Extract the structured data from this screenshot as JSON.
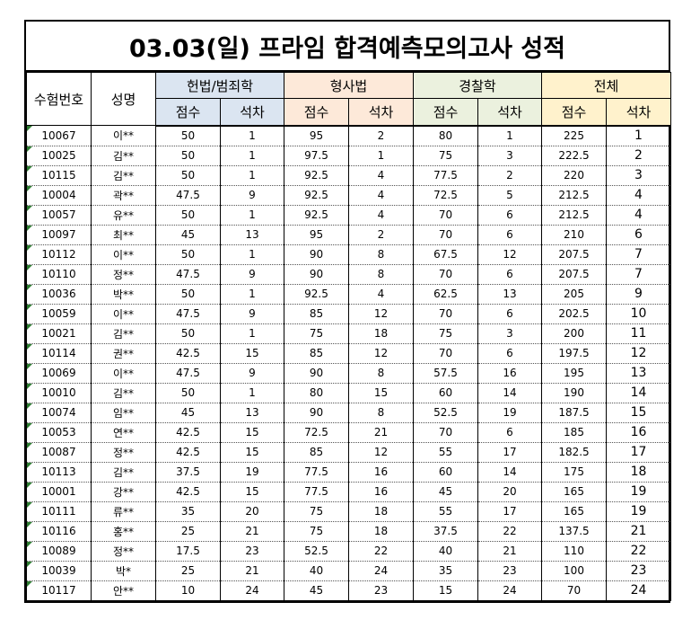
{
  "title": "03.03(일) 프라임 합격예측모의고사 성적",
  "headers": {
    "id": "수험번호",
    "name": "성명",
    "groups": [
      "헌법/범죄학",
      "형사법",
      "경찰학",
      "전체"
    ],
    "score": "점수",
    "rank": "석차"
  },
  "colors": {
    "law": "#dbe5f1",
    "crim": "#fde9d9",
    "police": "#ebf1de",
    "total": "#fff2cc",
    "marker": "#2e7d32"
  },
  "rows": [
    {
      "id": "10067",
      "name": "이**",
      "s1": "50",
      "r1": "1",
      "s2": "95",
      "r2": "2",
      "s3": "80",
      "r3": "1",
      "st": "225",
      "rt": "1"
    },
    {
      "id": "10025",
      "name": "김**",
      "s1": "50",
      "r1": "1",
      "s2": "97.5",
      "r2": "1",
      "s3": "75",
      "r3": "3",
      "st": "222.5",
      "rt": "2"
    },
    {
      "id": "10115",
      "name": "김**",
      "s1": "50",
      "r1": "1",
      "s2": "92.5",
      "r2": "4",
      "s3": "77.5",
      "r3": "2",
      "st": "220",
      "rt": "3"
    },
    {
      "id": "10004",
      "name": "곽**",
      "s1": "47.5",
      "r1": "9",
      "s2": "92.5",
      "r2": "4",
      "s3": "72.5",
      "r3": "5",
      "st": "212.5",
      "rt": "4"
    },
    {
      "id": "10057",
      "name": "유**",
      "s1": "50",
      "r1": "1",
      "s2": "92.5",
      "r2": "4",
      "s3": "70",
      "r3": "6",
      "st": "212.5",
      "rt": "4"
    },
    {
      "id": "10097",
      "name": "최**",
      "s1": "45",
      "r1": "13",
      "s2": "95",
      "r2": "2",
      "s3": "70",
      "r3": "6",
      "st": "210",
      "rt": "6"
    },
    {
      "id": "10112",
      "name": "이**",
      "s1": "50",
      "r1": "1",
      "s2": "90",
      "r2": "8",
      "s3": "67.5",
      "r3": "12",
      "st": "207.5",
      "rt": "7"
    },
    {
      "id": "10110",
      "name": "정**",
      "s1": "47.5",
      "r1": "9",
      "s2": "90",
      "r2": "8",
      "s3": "70",
      "r3": "6",
      "st": "207.5",
      "rt": "7"
    },
    {
      "id": "10036",
      "name": "박**",
      "s1": "50",
      "r1": "1",
      "s2": "92.5",
      "r2": "4",
      "s3": "62.5",
      "r3": "13",
      "st": "205",
      "rt": "9"
    },
    {
      "id": "10059",
      "name": "이**",
      "s1": "47.5",
      "r1": "9",
      "s2": "85",
      "r2": "12",
      "s3": "70",
      "r3": "6",
      "st": "202.5",
      "rt": "10"
    },
    {
      "id": "10021",
      "name": "김**",
      "s1": "50",
      "r1": "1",
      "s2": "75",
      "r2": "18",
      "s3": "75",
      "r3": "3",
      "st": "200",
      "rt": "11"
    },
    {
      "id": "10114",
      "name": "권**",
      "s1": "42.5",
      "r1": "15",
      "s2": "85",
      "r2": "12",
      "s3": "70",
      "r3": "6",
      "st": "197.5",
      "rt": "12"
    },
    {
      "id": "10069",
      "name": "이**",
      "s1": "47.5",
      "r1": "9",
      "s2": "90",
      "r2": "8",
      "s3": "57.5",
      "r3": "16",
      "st": "195",
      "rt": "13"
    },
    {
      "id": "10010",
      "name": "김**",
      "s1": "50",
      "r1": "1",
      "s2": "80",
      "r2": "15",
      "s3": "60",
      "r3": "14",
      "st": "190",
      "rt": "14"
    },
    {
      "id": "10074",
      "name": "임**",
      "s1": "45",
      "r1": "13",
      "s2": "90",
      "r2": "8",
      "s3": "52.5",
      "r3": "19",
      "st": "187.5",
      "rt": "15"
    },
    {
      "id": "10053",
      "name": "연**",
      "s1": "42.5",
      "r1": "15",
      "s2": "72.5",
      "r2": "21",
      "s3": "70",
      "r3": "6",
      "st": "185",
      "rt": "16"
    },
    {
      "id": "10087",
      "name": "정**",
      "s1": "42.5",
      "r1": "15",
      "s2": "85",
      "r2": "12",
      "s3": "55",
      "r3": "17",
      "st": "182.5",
      "rt": "17"
    },
    {
      "id": "10113",
      "name": "김**",
      "s1": "37.5",
      "r1": "19",
      "s2": "77.5",
      "r2": "16",
      "s3": "60",
      "r3": "14",
      "st": "175",
      "rt": "18"
    },
    {
      "id": "10001",
      "name": "강**",
      "s1": "42.5",
      "r1": "15",
      "s2": "77.5",
      "r2": "16",
      "s3": "45",
      "r3": "20",
      "st": "165",
      "rt": "19"
    },
    {
      "id": "10111",
      "name": "류**",
      "s1": "35",
      "r1": "20",
      "s2": "75",
      "r2": "18",
      "s3": "55",
      "r3": "17",
      "st": "165",
      "rt": "19"
    },
    {
      "id": "10116",
      "name": "홍**",
      "s1": "25",
      "r1": "21",
      "s2": "75",
      "r2": "18",
      "s3": "37.5",
      "r3": "22",
      "st": "137.5",
      "rt": "21"
    },
    {
      "id": "10089",
      "name": "정**",
      "s1": "17.5",
      "r1": "23",
      "s2": "52.5",
      "r2": "22",
      "s3": "40",
      "r3": "21",
      "st": "110",
      "rt": "22"
    },
    {
      "id": "10039",
      "name": "박*",
      "s1": "25",
      "r1": "21",
      "s2": "40",
      "r2": "24",
      "s3": "35",
      "r3": "23",
      "st": "100",
      "rt": "23"
    },
    {
      "id": "10117",
      "name": "안**",
      "s1": "10",
      "r1": "24",
      "s2": "45",
      "r2": "23",
      "s3": "15",
      "r3": "24",
      "st": "70",
      "rt": "24"
    }
  ]
}
